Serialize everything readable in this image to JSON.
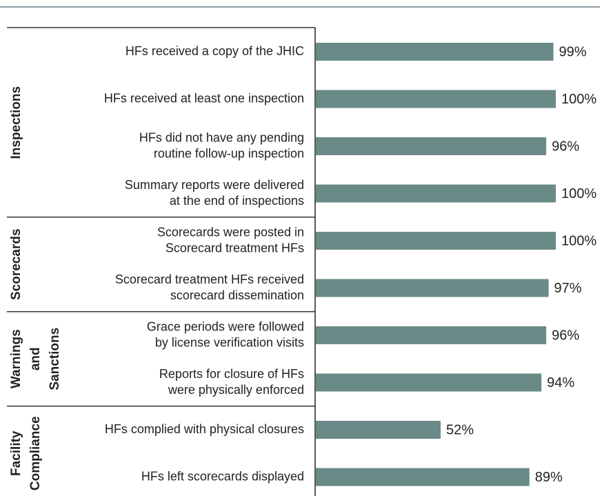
{
  "chart_data": {
    "type": "bar",
    "color": "#6a8a87",
    "xlim": [
      0,
      100
    ],
    "groups": [
      {
        "label": [
          "Inspections"
        ],
        "categories": [
          [
            "HFs received a copy of the JHIC"
          ],
          [
            "HFs received at least one inspection"
          ],
          [
            "HFs did not have any pending",
            "routine follow-up inspection"
          ],
          [
            "Summary reports were delivered",
            "at the end of inspections"
          ]
        ],
        "values": [
          99,
          100,
          96,
          100
        ],
        "value_labels": [
          "99%",
          "100%",
          "96%",
          "100%"
        ]
      },
      {
        "label": [
          "Scorecards"
        ],
        "categories": [
          [
            "Scorecards were posted in",
            "Scorecard treatment HFs"
          ],
          [
            "Scorecard treatment HFs received",
            "scorecard dissemination"
          ]
        ],
        "values": [
          100,
          97
        ],
        "value_labels": [
          "100%",
          "97%"
        ]
      },
      {
        "label": [
          "Warnings",
          "and",
          "Sanctions"
        ],
        "categories": [
          [
            "Grace periods were followed",
            "by license verification visits"
          ],
          [
            "Reports for closure of HFs",
            "were physically enforced"
          ]
        ],
        "values": [
          96,
          94
        ],
        "value_labels": [
          "96%",
          "94%"
        ]
      },
      {
        "label": [
          "Facility",
          "Compliance"
        ],
        "categories": [
          [
            "HFs complied with physical closures"
          ],
          [
            "HFs left scorecards displayed"
          ]
        ],
        "values": [
          52,
          89
        ],
        "value_labels": [
          "52%",
          "89%"
        ]
      }
    ]
  }
}
